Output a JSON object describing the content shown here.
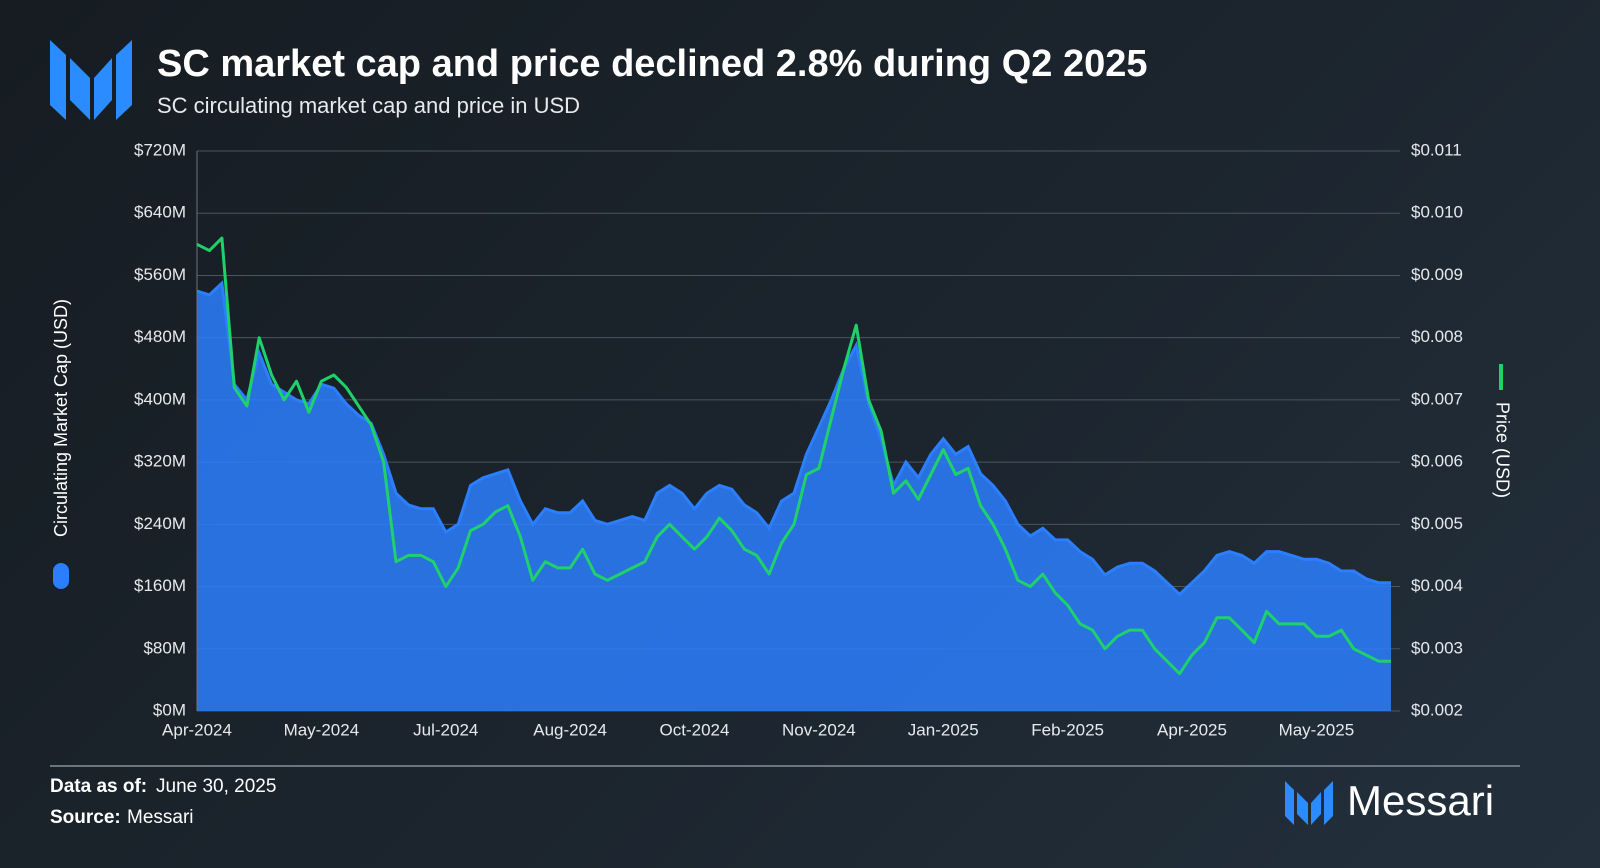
{
  "chart_data": {
    "type": "area",
    "title": "SC market cap and price declined 2.8% during Q2 2025",
    "subtitle": "SC circulating market cap and price in USD",
    "categories": [
      "Apr-2024",
      null,
      null,
      null,
      null,
      null,
      null,
      null,
      null,
      null,
      "May-2024",
      null,
      null,
      null,
      null,
      null,
      null,
      null,
      null,
      null,
      "Jul-2024",
      null,
      null,
      null,
      null,
      null,
      null,
      null,
      null,
      null,
      "Aug-2024",
      null,
      null,
      null,
      null,
      null,
      null,
      null,
      null,
      null,
      "Oct-2024",
      null,
      null,
      null,
      null,
      null,
      null,
      null,
      null,
      null,
      "Nov-2024",
      null,
      null,
      null,
      null,
      null,
      null,
      null,
      null,
      null,
      "Jan-2025",
      null,
      null,
      null,
      null,
      null,
      null,
      null,
      null,
      null,
      "Feb-2025",
      null,
      null,
      null,
      null,
      null,
      null,
      null,
      null,
      null,
      "Apr-2025",
      null,
      null,
      null,
      null,
      null,
      null,
      null,
      null,
      null,
      "May-2025",
      null,
      null,
      null,
      null,
      null,
      null
    ],
    "series": [
      {
        "name": "Circulating Market Cap (USD)",
        "type": "area",
        "color": "#2b7fff",
        "values": [
          540,
          535,
          550,
          420,
          400,
          460,
          420,
          410,
          400,
          395,
          420,
          415,
          395,
          380,
          370,
          330,
          280,
          265,
          260,
          260,
          230,
          240,
          290,
          300,
          305,
          310,
          270,
          240,
          260,
          255,
          255,
          270,
          245,
          240,
          245,
          250,
          245,
          280,
          290,
          280,
          260,
          280,
          290,
          285,
          265,
          255,
          235,
          270,
          280,
          330,
          365,
          400,
          440,
          470,
          395,
          350,
          290,
          320,
          300,
          330,
          350,
          330,
          340,
          305,
          290,
          270,
          240,
          225,
          235,
          220,
          220,
          205,
          195,
          175,
          185,
          190,
          190,
          180,
          165,
          150,
          165,
          180,
          200,
          205,
          200,
          190,
          205,
          205,
          200,
          195,
          195,
          190,
          180,
          180,
          170,
          165,
          165
        ]
      },
      {
        "name": "Price (USD)",
        "type": "line",
        "axis": "y2",
        "color": "#1fd16b",
        "values": [
          0.0095,
          0.0094,
          0.0096,
          0.0072,
          0.0069,
          0.008,
          0.0074,
          0.007,
          0.0073,
          0.0068,
          0.0073,
          0.0074,
          0.0072,
          0.0069,
          0.0066,
          0.006,
          0.0044,
          0.0045,
          0.0045,
          0.0044,
          0.004,
          0.0043,
          0.0049,
          0.005,
          0.0052,
          0.0053,
          0.0048,
          0.0041,
          0.0044,
          0.0043,
          0.0043,
          0.0046,
          0.0042,
          0.0041,
          0.0042,
          0.0043,
          0.0044,
          0.0048,
          0.005,
          0.0048,
          0.0046,
          0.0048,
          0.0051,
          0.0049,
          0.0046,
          0.0045,
          0.0042,
          0.0047,
          0.005,
          0.0058,
          0.0059,
          0.0067,
          0.0075,
          0.0082,
          0.007,
          0.0065,
          0.0055,
          0.0057,
          0.0054,
          0.0058,
          0.0062,
          0.0058,
          0.0059,
          0.0053,
          0.005,
          0.0046,
          0.0041,
          0.004,
          0.0042,
          0.0039,
          0.0037,
          0.0034,
          0.0033,
          0.003,
          0.0032,
          0.0033,
          0.0033,
          0.003,
          0.0028,
          0.0026,
          0.0029,
          0.0031,
          0.0035,
          0.0035,
          0.0033,
          0.0031,
          0.0036,
          0.0034,
          0.0034,
          0.0034,
          0.0032,
          0.0032,
          0.0033,
          0.003,
          0.0029,
          0.0028,
          0.0028
        ]
      }
    ],
    "ylim": [
      0,
      720
    ],
    "yticks": [
      {
        "value": 0,
        "label": "$0M"
      },
      {
        "value": 80,
        "label": "$80M"
      },
      {
        "value": 160,
        "label": "$160M"
      },
      {
        "value": 240,
        "label": "$240M"
      },
      {
        "value": 320,
        "label": "$320M"
      },
      {
        "value": 400,
        "label": "$400M"
      },
      {
        "value": 480,
        "label": "$480M"
      },
      {
        "value": 560,
        "label": "$560M"
      },
      {
        "value": 640,
        "label": "$640M"
      },
      {
        "value": 720,
        "label": "$720M"
      }
    ],
    "y2lim": [
      0.002,
      0.011
    ],
    "y2ticks": [
      {
        "value": 0.002,
        "label": "$0.002"
      },
      {
        "value": 0.003,
        "label": "$0.003"
      },
      {
        "value": 0.004,
        "label": "$0.004"
      },
      {
        "value": 0.005,
        "label": "$0.005"
      },
      {
        "value": 0.006,
        "label": "$0.006"
      },
      {
        "value": 0.007,
        "label": "$0.007"
      },
      {
        "value": 0.008,
        "label": "$0.008"
      },
      {
        "value": 0.009,
        "label": "$0.009"
      },
      {
        "value": 0.01,
        "label": "$0.010"
      },
      {
        "value": 0.011,
        "label": "$0.011"
      }
    ],
    "grid": true
  },
  "footer": {
    "data_label": "Data as of:",
    "data_date": "June 30, 2025",
    "source_label": "Source:",
    "source": "Messari"
  },
  "brand": "Messari"
}
